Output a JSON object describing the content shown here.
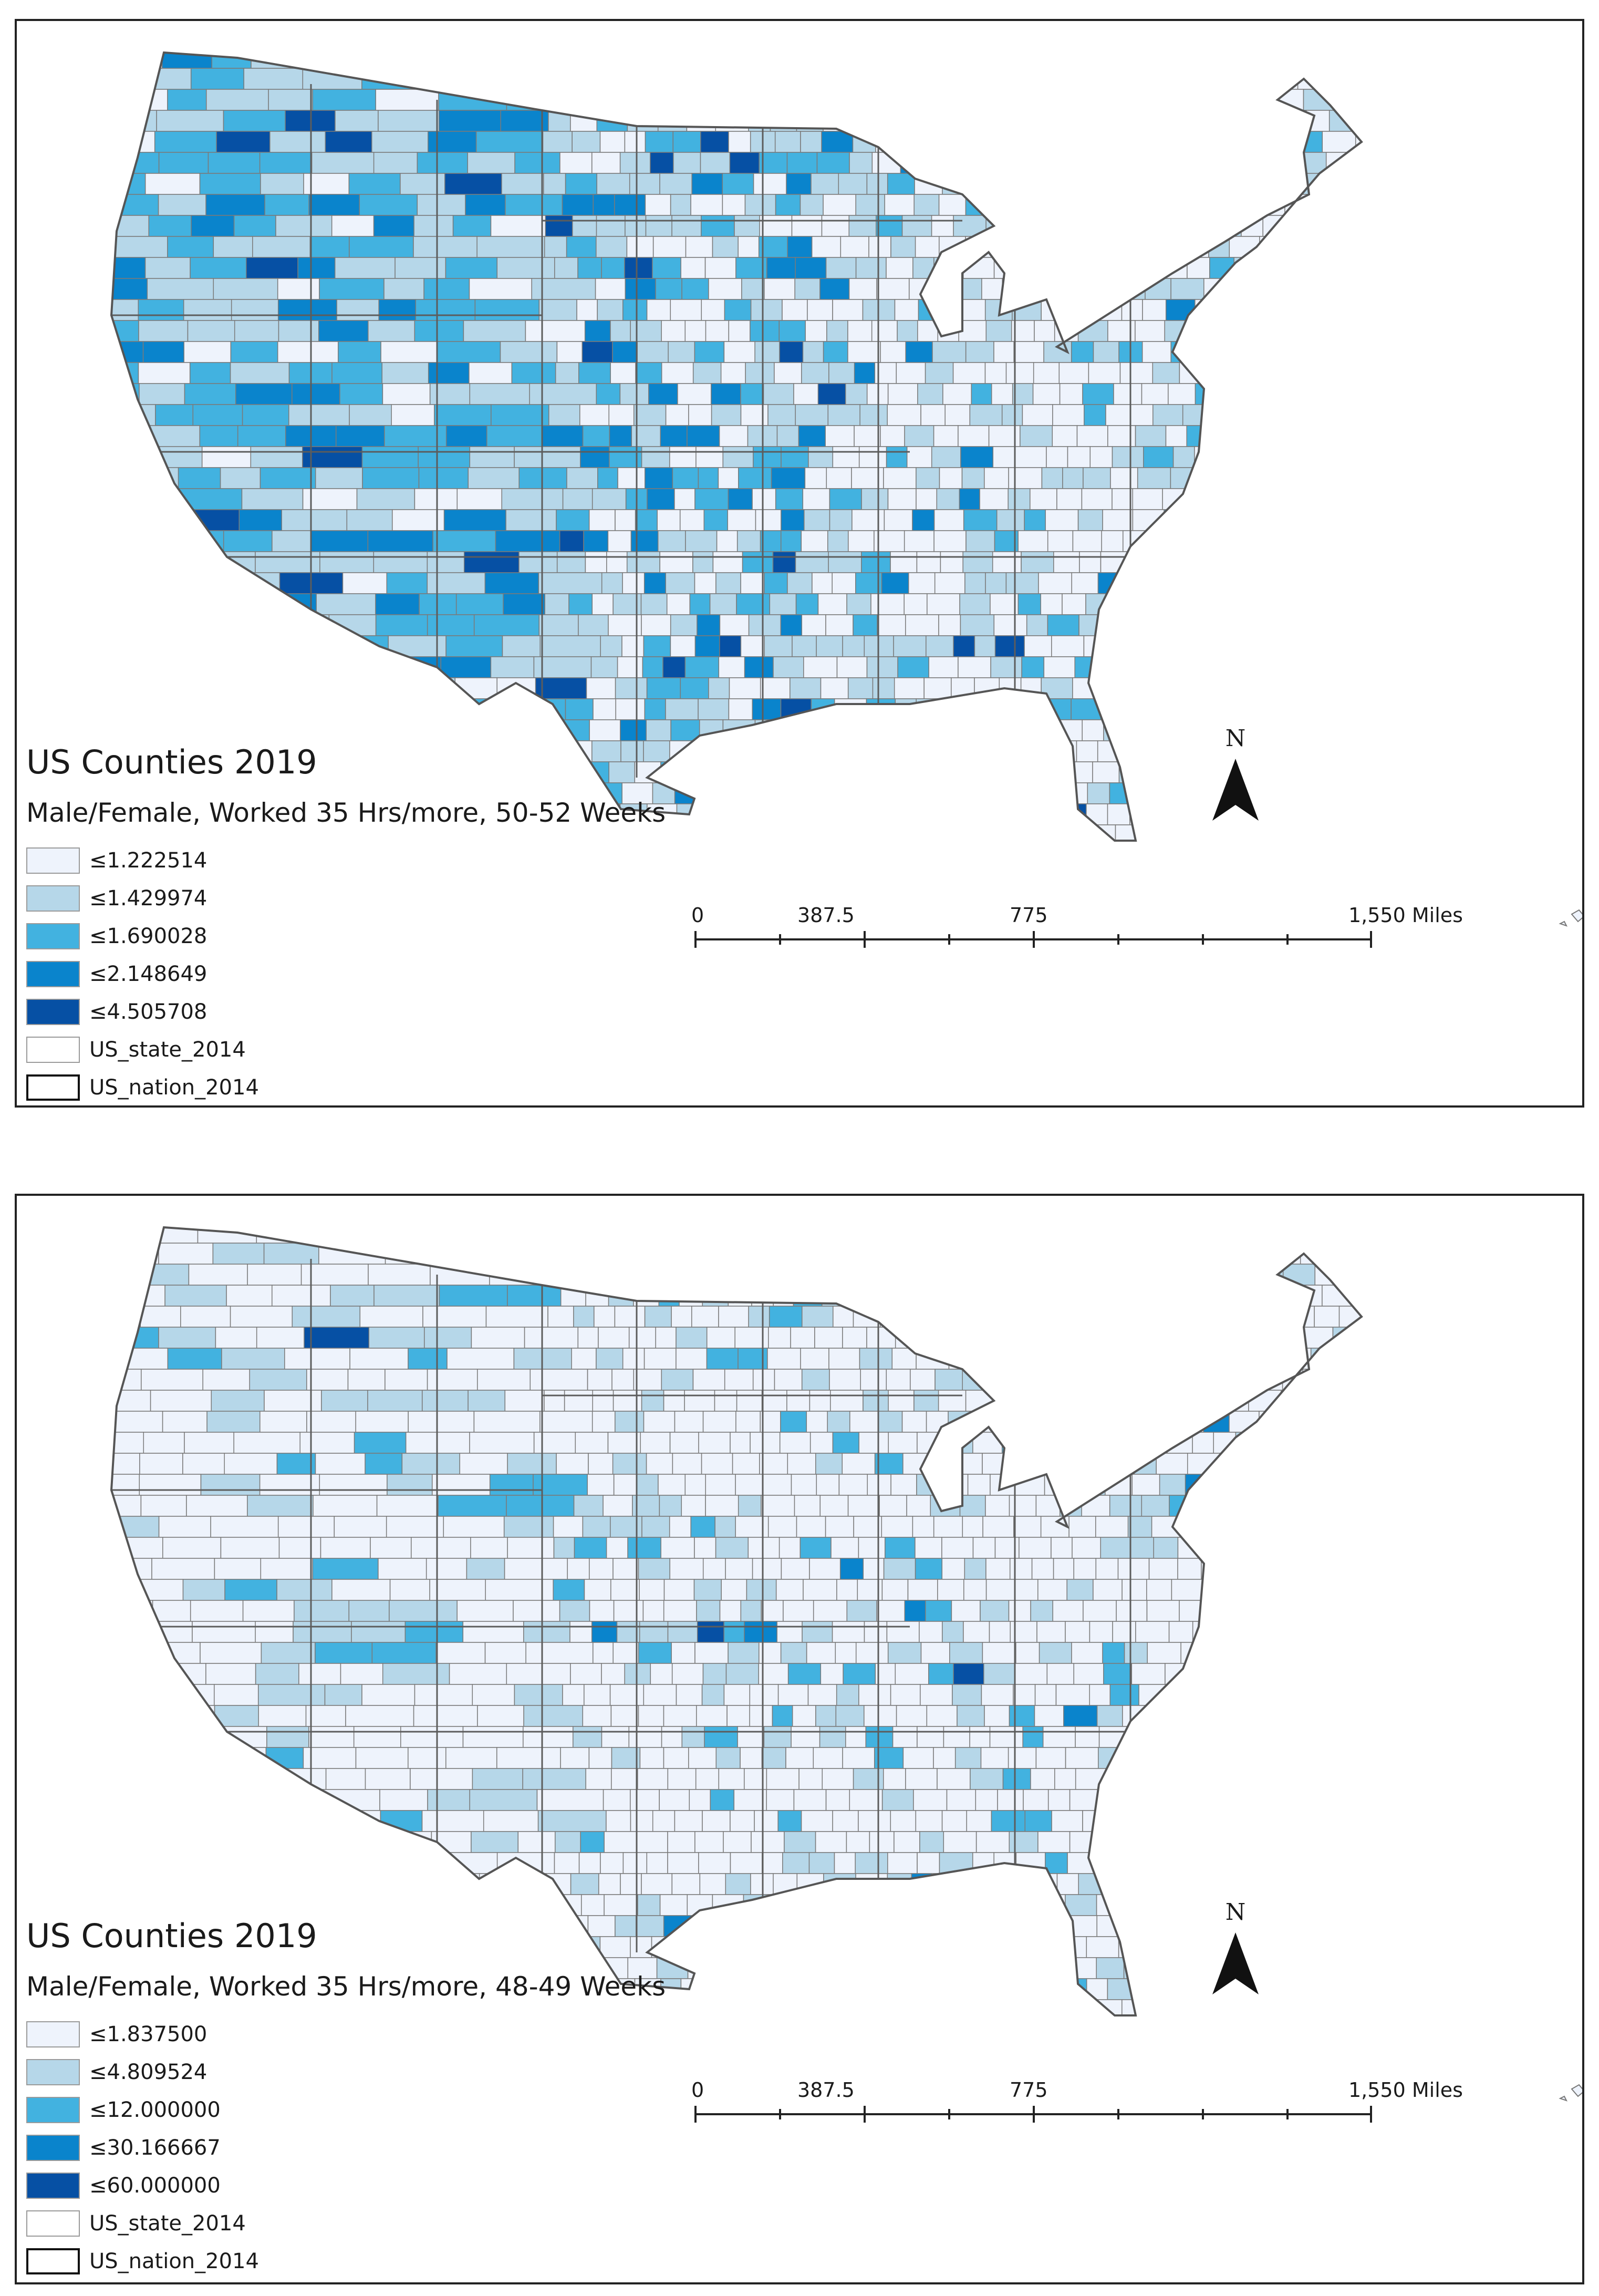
{
  "colors": {
    "top": [
      "#eef3fc",
      "#b6d7e9",
      "#42b2e0",
      "#0a84cc",
      "#0650a4"
    ],
    "bottom": [
      "#eef3fc",
      "#b6d7e9",
      "#42b2e0",
      "#0a84cc",
      "#0650a4"
    ],
    "state": "#ffffff",
    "nation": "#ffffff",
    "border": "#6e6e6e"
  },
  "maps": [
    {
      "title": "US Counties 2019",
      "subtitle": "Male/Female, Worked 35 Hrs/more, 50-52 Weeks",
      "legend": [
        {
          "label": "≤1.222514"
        },
        {
          "label": "≤1.429974"
        },
        {
          "label": "≤1.690028"
        },
        {
          "label": "≤2.148649"
        },
        {
          "label": "≤4.505708"
        },
        {
          "label": "US_state_2014"
        },
        {
          "label": "US_nation_2014"
        }
      ],
      "scale": {
        "labels": [
          "0",
          "387.5",
          "775",
          "1,550 Miles"
        ]
      },
      "north": "N"
    },
    {
      "title": "US Counties 2019",
      "subtitle": "Male/Female, Worked 35 Hrs/more, 48-49 Weeks",
      "legend": [
        {
          "label": "≤1.837500"
        },
        {
          "label": "≤4.809524"
        },
        {
          "label": "≤12.000000"
        },
        {
          "label": "≤30.166667"
        },
        {
          "label": "≤60.000000"
        },
        {
          "label": "US_state_2014"
        },
        {
          "label": "US_nation_2014"
        }
      ],
      "scale": {
        "labels": [
          "0",
          "387.5",
          "775",
          "1,550 Miles"
        ]
      },
      "north": "N"
    }
  ]
}
